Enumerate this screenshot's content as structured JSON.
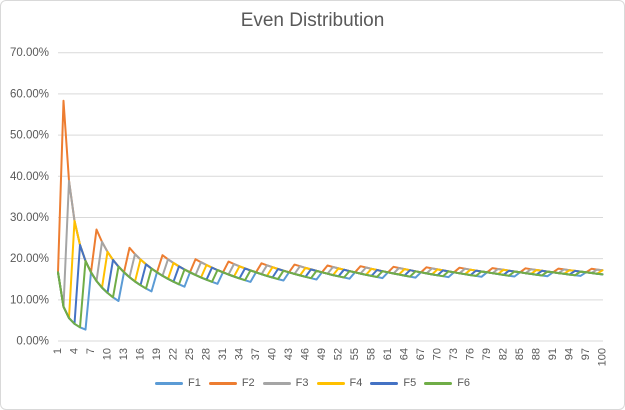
{
  "chart": {
    "title": "Even Distribution"
  },
  "colors": {
    "background": "#FFFFFF",
    "frame_border": "#D9D9D9",
    "gridline": "#D9D9D9",
    "axis_text": "#595959",
    "title_text": "#595959"
  },
  "chart_data": {
    "type": "line",
    "title": "Even Distribution",
    "xlabel": "",
    "ylabel": "",
    "x_range": [
      1,
      100
    ],
    "ylim": [
      0,
      70
    ],
    "y_unit": "percent",
    "grid": true,
    "legend_position": "bottom",
    "x_tick_labels": [
      "1",
      "4",
      "7",
      "10",
      "13",
      "16",
      "19",
      "22",
      "25",
      "28",
      "31",
      "34",
      "37",
      "40",
      "43",
      "46",
      "49",
      "52",
      "55",
      "58",
      "61",
      "64",
      "67",
      "70",
      "73",
      "76",
      "79",
      "82",
      "85",
      "88",
      "91",
      "94",
      "97",
      "100"
    ],
    "y_tick_labels": [
      "0.00%",
      "10.00%",
      "20.00%",
      "30.00%",
      "40.00%",
      "50.00%",
      "60.00%",
      "70.00%"
    ],
    "series": [
      {
        "name": "F1",
        "color": "#5B9BD5",
        "values": [
          16.67,
          8.33,
          5.56,
          4.17,
          3.33,
          2.78,
          16.67,
          14.58,
          12.96,
          11.67,
          10.61,
          9.72,
          16.67,
          15.48,
          14.44,
          13.54,
          12.75,
          12.04,
          16.67,
          15.83,
          15.08,
          14.39,
          13.77,
          13.19,
          16.67,
          16.03,
          15.43,
          14.88,
          14.37,
          13.89,
          16.67,
          16.15,
          15.66,
          15.2,
          14.76,
          14.35,
          16.67,
          16.23,
          15.81,
          15.42,
          15.04,
          14.68,
          16.67,
          16.29,
          15.93,
          15.58,
          15.25,
          14.93,
          16.67,
          16.33,
          16.01,
          15.71,
          15.41,
          15.12,
          16.67,
          16.37,
          16.08,
          15.8,
          15.54,
          15.28,
          16.67,
          16.4,
          16.14,
          15.89,
          15.64,
          15.4,
          16.67,
          16.42,
          16.18,
          15.95,
          15.73,
          15.51,
          16.67,
          16.44,
          16.22,
          16.01,
          15.8,
          15.6,
          16.67,
          16.46,
          16.26,
          16.06,
          15.86,
          15.67,
          16.67,
          16.47,
          16.28,
          16.1,
          15.91,
          15.74,
          16.67,
          16.49,
          16.31,
          16.13,
          15.96,
          15.8,
          16.67,
          16.5,
          16.33,
          16.17
        ]
      },
      {
        "name": "F2",
        "color": "#ED7D31",
        "values": [
          16.67,
          58.33,
          38.89,
          29.17,
          23.33,
          19.44,
          16.67,
          27.08,
          24.07,
          21.67,
          19.7,
          18.06,
          16.67,
          22.62,
          21.11,
          19.79,
          18.63,
          17.59,
          16.67,
          20.83,
          19.84,
          18.94,
          18.12,
          17.36,
          16.67,
          19.87,
          19.14,
          18.45,
          17.82,
          17.22,
          16.67,
          19.27,
          18.69,
          18.14,
          17.62,
          17.13,
          16.67,
          18.86,
          18.38,
          17.92,
          17.48,
          17.06,
          16.67,
          18.56,
          18.15,
          17.75,
          17.38,
          17.01,
          16.67,
          18.33,
          17.97,
          17.63,
          17.3,
          16.98,
          16.67,
          18.15,
          17.84,
          17.53,
          17.23,
          16.94,
          16.67,
          18.01,
          17.72,
          17.45,
          17.18,
          16.92,
          16.67,
          17.89,
          17.63,
          17.38,
          17.14,
          16.9,
          16.67,
          17.79,
          17.56,
          17.32,
          17.1,
          16.88,
          16.67,
          17.71,
          17.49,
          17.28,
          17.07,
          16.87,
          16.67,
          17.64,
          17.43,
          17.23,
          17.04,
          16.85,
          16.67,
          17.57,
          17.38,
          17.2,
          17.02,
          16.84,
          16.67,
          17.52,
          17.34,
          17.17
        ]
      },
      {
        "name": "F3",
        "color": "#A5A5A5",
        "values": [
          16.67,
          8.33,
          38.89,
          29.17,
          23.33,
          19.44,
          16.67,
          14.58,
          24.07,
          21.67,
          19.7,
          18.06,
          16.67,
          15.48,
          21.11,
          19.79,
          18.63,
          17.59,
          16.67,
          15.83,
          19.84,
          18.94,
          18.12,
          17.36,
          16.67,
          16.03,
          19.14,
          18.45,
          17.82,
          17.22,
          16.67,
          16.15,
          18.69,
          18.14,
          17.62,
          17.13,
          16.67,
          16.23,
          18.38,
          17.92,
          17.48,
          17.06,
          16.67,
          16.29,
          18.15,
          17.75,
          17.38,
          17.01,
          16.67,
          16.33,
          17.97,
          17.63,
          17.3,
          16.98,
          16.67,
          16.37,
          17.84,
          17.53,
          17.23,
          16.94,
          16.67,
          16.4,
          17.72,
          17.45,
          17.18,
          16.92,
          16.67,
          16.42,
          17.63,
          17.38,
          17.14,
          16.9,
          16.67,
          16.44,
          17.56,
          17.32,
          17.1,
          16.88,
          16.67,
          16.46,
          17.49,
          17.28,
          17.07,
          16.87,
          16.67,
          16.47,
          17.43,
          17.23,
          17.04,
          16.85,
          16.67,
          16.49,
          17.38,
          17.2,
          17.02,
          16.84,
          16.67,
          16.5,
          17.34,
          17.17
        ]
      },
      {
        "name": "F4",
        "color": "#FFC000",
        "values": [
          16.67,
          8.33,
          5.56,
          29.17,
          23.33,
          19.44,
          16.67,
          14.58,
          12.96,
          21.67,
          19.7,
          18.06,
          16.67,
          15.48,
          14.44,
          19.79,
          18.63,
          17.59,
          16.67,
          15.83,
          15.08,
          18.94,
          18.12,
          17.36,
          16.67,
          16.03,
          15.43,
          18.45,
          17.82,
          17.22,
          16.67,
          16.15,
          15.66,
          18.14,
          17.62,
          17.13,
          16.67,
          16.23,
          15.81,
          17.92,
          17.48,
          17.06,
          16.67,
          16.29,
          15.93,
          17.75,
          17.38,
          17.01,
          16.67,
          16.33,
          16.01,
          17.63,
          17.3,
          16.98,
          16.67,
          16.37,
          16.08,
          17.53,
          17.23,
          16.94,
          16.67,
          16.4,
          16.14,
          17.45,
          17.18,
          16.92,
          16.67,
          16.42,
          16.18,
          17.38,
          17.14,
          16.9,
          16.67,
          16.44,
          16.22,
          17.32,
          17.1,
          16.88,
          16.67,
          16.46,
          16.26,
          17.28,
          17.07,
          16.87,
          16.67,
          16.47,
          16.28,
          17.23,
          17.04,
          16.85,
          16.67,
          16.49,
          16.31,
          17.2,
          17.02,
          16.84,
          16.67,
          16.5,
          16.33,
          17.17
        ]
      },
      {
        "name": "F5",
        "color": "#4472C4",
        "values": [
          16.67,
          8.33,
          5.56,
          4.17,
          23.33,
          19.44,
          16.67,
          14.58,
          12.96,
          11.67,
          19.7,
          18.06,
          16.67,
          15.48,
          14.44,
          13.54,
          18.63,
          17.59,
          16.67,
          15.83,
          15.08,
          14.39,
          18.12,
          17.36,
          16.67,
          16.03,
          15.43,
          14.88,
          17.82,
          17.22,
          16.67,
          16.15,
          15.66,
          15.2,
          17.62,
          17.13,
          16.67,
          16.23,
          15.81,
          15.42,
          17.48,
          17.06,
          16.67,
          16.29,
          15.93,
          15.58,
          17.38,
          17.01,
          16.67,
          16.33,
          16.01,
          15.71,
          17.3,
          16.98,
          16.67,
          16.37,
          16.08,
          15.8,
          17.23,
          16.94,
          16.67,
          16.4,
          16.14,
          15.89,
          17.18,
          16.92,
          16.67,
          16.42,
          16.18,
          15.95,
          17.14,
          16.9,
          16.67,
          16.44,
          16.22,
          16.01,
          17.1,
          16.88,
          16.67,
          16.46,
          16.26,
          16.06,
          17.07,
          16.87,
          16.67,
          16.47,
          16.28,
          16.1,
          17.04,
          16.85,
          16.67,
          16.49,
          16.31,
          16.13,
          17.02,
          16.84,
          16.67,
          16.5,
          16.33,
          16.17
        ]
      },
      {
        "name": "F6",
        "color": "#70AD47",
        "values": [
          16.67,
          8.33,
          5.56,
          4.17,
          3.33,
          19.44,
          16.67,
          14.58,
          12.96,
          11.67,
          10.61,
          18.06,
          16.67,
          15.48,
          14.44,
          13.54,
          12.75,
          17.59,
          16.67,
          15.83,
          15.08,
          14.39,
          13.77,
          17.36,
          16.67,
          16.03,
          15.43,
          14.88,
          14.37,
          17.22,
          16.67,
          16.15,
          15.66,
          15.2,
          14.76,
          17.13,
          16.67,
          16.23,
          15.81,
          15.42,
          15.04,
          17.06,
          16.67,
          16.29,
          15.93,
          15.58,
          15.25,
          17.01,
          16.67,
          16.33,
          16.01,
          15.71,
          15.41,
          16.98,
          16.67,
          16.37,
          16.08,
          15.8,
          15.54,
          16.94,
          16.67,
          16.4,
          16.14,
          15.89,
          15.64,
          16.92,
          16.67,
          16.42,
          16.18,
          15.95,
          15.73,
          16.9,
          16.67,
          16.44,
          16.22,
          16.01,
          15.8,
          16.88,
          16.67,
          16.46,
          16.26,
          16.06,
          15.86,
          16.87,
          16.67,
          16.47,
          16.28,
          16.1,
          15.91,
          16.85,
          16.67,
          16.49,
          16.31,
          16.13,
          15.96,
          16.84,
          16.67,
          16.5,
          16.33,
          16.17
        ]
      }
    ]
  }
}
